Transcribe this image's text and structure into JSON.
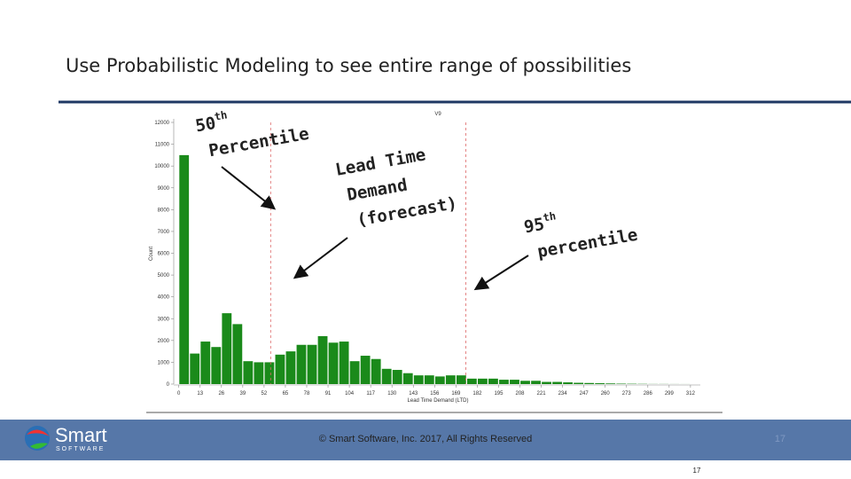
{
  "slide": {
    "title": "Use Probabilistic Modeling to see entire range of possibilities",
    "annotations": {
      "p50": {
        "number": "50",
        "suffix": "th",
        "word": "Percentile"
      },
      "ltd": {
        "lines": [
          "Lead Time",
          "Demand",
          "(forecast)"
        ]
      },
      "p95": {
        "number": "95",
        "suffix": "th",
        "word": "percentile"
      }
    },
    "footer": {
      "copyright": "© Smart Software, Inc. 2017, All Rights Reserved",
      "page": "17",
      "logo_main": "Smart",
      "logo_sub": "SOFTWARE"
    }
  },
  "chart_data": {
    "type": "histogram",
    "top_label": "V9",
    "x_label": "Lead Time Demand (LTD)",
    "y_label": "Count",
    "color": "#1a8a1a",
    "bins": [
      0,
      6.5,
      13,
      19.5,
      26,
      32.5,
      39,
      45.5,
      52,
      58.5,
      65,
      71.5,
      78,
      84.5,
      91,
      97.5,
      104,
      110.5,
      117,
      123.5,
      130,
      136.5,
      143,
      149.5,
      156,
      162.5,
      169,
      175.5,
      182,
      188.5,
      195,
      201.5,
      208,
      214.5,
      221,
      227.5,
      234,
      240.5,
      247,
      253.5,
      260,
      266.5,
      273,
      279.5,
      286,
      292.5,
      299,
      305.5,
      312
    ],
    "counts": [
      10500,
      1400,
      1950,
      1700,
      3250,
      2750,
      1050,
      1000,
      1000,
      1350,
      1500,
      1800,
      1800,
      2200,
      1900,
      1950,
      1050,
      1300,
      1150,
      700,
      650,
      500,
      400,
      400,
      350,
      400,
      400,
      250,
      250,
      250,
      200,
      200,
      150,
      150,
      100,
      100,
      80,
      60,
      50,
      40,
      30,
      20,
      15,
      10,
      5,
      5,
      3,
      2
    ],
    "reference_lines": [
      56,
      175
    ],
    "xlim": [
      -2,
      318
    ],
    "ylim": [
      0,
      12000
    ],
    "xticks": [
      0,
      13,
      26,
      39,
      52,
      65,
      78,
      91,
      104,
      117,
      130,
      143,
      156,
      169,
      182,
      195,
      208,
      221,
      234,
      247,
      260,
      273,
      286,
      299,
      312
    ],
    "yticks": [
      0,
      1000,
      2000,
      3000,
      4000,
      5000,
      6000,
      7000,
      8000,
      9000,
      10000,
      11000,
      12000
    ]
  }
}
